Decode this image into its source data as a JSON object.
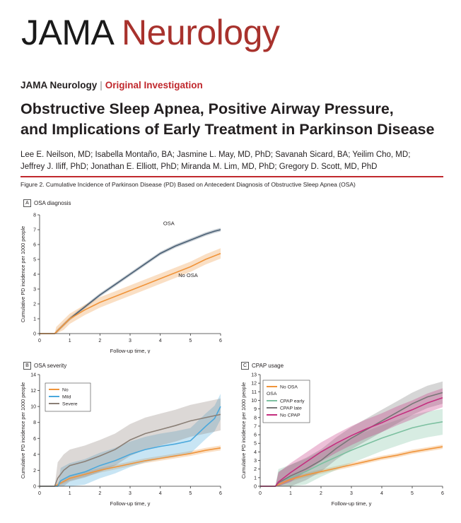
{
  "journal_logo": {
    "part1": "JAMA",
    "part2": "Neurology"
  },
  "header": {
    "journal": "JAMA Neurology",
    "separator": "|",
    "article_type": "Original Investigation"
  },
  "title": {
    "line1": "Obstructive Sleep Apnea, Positive Airway Pressure,",
    "line2": "and Implications of Early Treatment in Parkinson Disease"
  },
  "authors": {
    "line1": "Lee E. Neilson, MD; Isabella Montaño, BA; Jasmine L. May, MD, PhD; Savanah Sicard, BA; Yeilim Cho, MD;",
    "line2": "Jeffrey J. Iliff, PhD; Jonathan E. Elliott, PhD; Miranda M. Lim, MD, PhD; Gregory D. Scott, MD, PhD"
  },
  "figure_caption": "Figure 2. Cumulative Incidence of Parkinson Disease (PD) Based on Antecedent Diagnosis of Obstructive Sleep Apnea (OSA)",
  "panels": {
    "A": {
      "letter": "A",
      "title": "OSA diagnosis"
    },
    "B": {
      "letter": "B",
      "title": "OSA severity"
    },
    "C": {
      "letter": "C",
      "title": "CPAP usage"
    }
  },
  "colors": {
    "osa": "#4a5f74",
    "no_osa": "#f0943a",
    "mild": "#4aa8dc",
    "severe": "#8a7f76",
    "cpap_early": "#7cc0a0",
    "cpap_late": "#777777",
    "no_cpap": "#c42e7e"
  },
  "chart_data": [
    {
      "id": "A",
      "type": "line",
      "title": "OSA diagnosis",
      "xlabel": "Follow-up time, y",
      "ylabel": "Cumulative PD incidence per 1000 people",
      "xlim": [
        0,
        6
      ],
      "ylim": [
        0,
        8
      ],
      "xticks": [
        0,
        1,
        2,
        3,
        4,
        5,
        6
      ],
      "yticks": [
        0,
        1,
        2,
        3,
        4,
        5,
        6,
        7,
        8
      ],
      "series": [
        {
          "name": "OSA",
          "label": "OSA",
          "color": "#4a5f74",
          "ci": 0.12,
          "x": [
            0,
            0.5,
            0.55,
            0.8,
            1,
            1.5,
            2,
            2.5,
            3,
            3.5,
            4,
            4.5,
            5,
            5.5,
            5.8,
            6
          ],
          "y": [
            0,
            0,
            0.1,
            0.6,
            1.0,
            1.8,
            2.6,
            3.3,
            4.0,
            4.7,
            5.4,
            5.9,
            6.3,
            6.7,
            6.9,
            7.0
          ]
        },
        {
          "name": "No OSA",
          "label": "No OSA",
          "color": "#f0943a",
          "ci": 0.35,
          "x": [
            0,
            0.5,
            0.55,
            0.8,
            1,
            1.5,
            2,
            2.5,
            3,
            3.5,
            4,
            4.5,
            5,
            5.5,
            6
          ],
          "y": [
            0,
            0,
            0.1,
            0.6,
            1.0,
            1.6,
            2.1,
            2.5,
            2.9,
            3.3,
            3.7,
            4.1,
            4.5,
            5.0,
            5.4
          ]
        }
      ]
    },
    {
      "id": "B",
      "type": "line",
      "title": "OSA severity",
      "xlabel": "Follow-up time, y",
      "ylabel": "Cumulative PD incidence per 1000 people",
      "xlim": [
        0,
        6
      ],
      "ylim": [
        0,
        14
      ],
      "xticks": [
        0,
        1,
        2,
        3,
        4,
        5,
        6
      ],
      "yticks": [
        0,
        2,
        4,
        6,
        8,
        10,
        12,
        14
      ],
      "legend": [
        {
          "name": "No",
          "color": "#f0943a"
        },
        {
          "name": "Mild",
          "color": "#4aa8dc"
        },
        {
          "name": "Severe",
          "color": "#8a7f76"
        }
      ],
      "series": [
        {
          "name": "No",
          "color": "#f0943a",
          "ci": 0.3,
          "x": [
            0,
            0.5,
            0.6,
            1,
            1.5,
            2,
            2.5,
            3,
            3.5,
            4,
            4.5,
            5,
            5.5,
            6
          ],
          "y": [
            0,
            0,
            0.2,
            1.0,
            1.5,
            2.0,
            2.4,
            2.8,
            3.2,
            3.5,
            3.8,
            4.1,
            4.5,
            4.8
          ]
        },
        {
          "name": "Mild",
          "color": "#4aa8dc",
          "ci": 1.6,
          "x": [
            0,
            0.6,
            0.7,
            1,
            1.5,
            2,
            2.5,
            3,
            3.5,
            4,
            4.5,
            5,
            5.5,
            5.8,
            6
          ],
          "y": [
            0,
            0,
            0.7,
            1.3,
            1.8,
            2.6,
            3.2,
            4.0,
            4.6,
            5.0,
            5.3,
            5.7,
            7.5,
            8.5,
            10.0
          ]
        },
        {
          "name": "Severe",
          "color": "#8a7f76",
          "ci": 2.0,
          "x": [
            0,
            0.5,
            0.6,
            0.8,
            1,
            1.5,
            2,
            2.5,
            3,
            3.5,
            4,
            4.5,
            5,
            5.5,
            6
          ],
          "y": [
            0,
            0,
            1.0,
            2.0,
            2.6,
            3.1,
            3.8,
            4.6,
            5.8,
            6.6,
            7.1,
            7.6,
            8.2,
            8.6,
            9.0
          ]
        }
      ]
    },
    {
      "id": "C",
      "type": "line",
      "title": "CPAP usage",
      "xlabel": "Follow-up time, y",
      "ylabel": "Cumulative PD incidence per 1000 people",
      "xlim": [
        0,
        6
      ],
      "ylim": [
        0,
        13
      ],
      "xticks": [
        0,
        1,
        2,
        3,
        4,
        5,
        6
      ],
      "yticks": [
        0,
        1,
        2,
        3,
        4,
        5,
        6,
        7,
        8,
        9,
        10,
        11,
        12,
        13
      ],
      "legend_header": "OSA",
      "legend": [
        {
          "name": "No OSA",
          "color": "#f0943a"
        },
        {
          "name": "CPAP early",
          "color": "#7cc0a0"
        },
        {
          "name": "CPAP late",
          "color": "#777777"
        },
        {
          "name": "No CPAP",
          "color": "#c42e7e"
        }
      ],
      "series": [
        {
          "name": "No OSA",
          "color": "#f0943a",
          "ci": 0.25,
          "x": [
            0,
            0.5,
            0.6,
            1,
            1.5,
            2,
            2.5,
            3,
            3.5,
            4,
            4.5,
            5,
            5.5,
            6
          ],
          "y": [
            0,
            0,
            0.2,
            0.8,
            1.3,
            1.7,
            2.1,
            2.5,
            2.9,
            3.3,
            3.6,
            4.0,
            4.3,
            4.6
          ]
        },
        {
          "name": "CPAP early",
          "color": "#7cc0a0",
          "ci": 1.5,
          "x": [
            0,
            0.5,
            0.6,
            1,
            1.5,
            2,
            2.5,
            3,
            3.5,
            4,
            4.5,
            5,
            5.5,
            6
          ],
          "y": [
            0,
            0,
            0.5,
            1.0,
            1.7,
            2.6,
            3.4,
            4.2,
            4.9,
            5.6,
            6.2,
            6.8,
            7.2,
            7.5
          ]
        },
        {
          "name": "CPAP late",
          "color": "#777777",
          "ci": 1.3,
          "x": [
            0,
            0.5,
            0.6,
            1,
            1.5,
            2,
            2.5,
            3,
            3.5,
            4,
            4.5,
            5,
            5.5,
            6
          ],
          "y": [
            0,
            0,
            0.4,
            1.2,
            2.0,
            3.0,
            4.4,
            5.6,
            6.6,
            7.6,
            8.6,
            9.6,
            10.4,
            10.9
          ]
        },
        {
          "name": "No CPAP",
          "color": "#c42e7e",
          "ci": 1.1,
          "x": [
            0,
            0.5,
            0.6,
            1,
            1.5,
            2,
            2.5,
            3,
            3.5,
            4,
            4.5,
            5,
            5.5,
            6
          ],
          "y": [
            0,
            0,
            0.5,
            1.6,
            2.8,
            4.0,
            5.0,
            5.9,
            6.7,
            7.4,
            8.2,
            8.9,
            9.7,
            10.3
          ]
        }
      ]
    }
  ]
}
